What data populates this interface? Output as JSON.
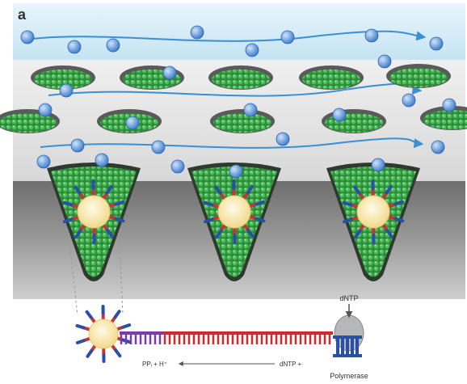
{
  "panel_label": "a",
  "labels": {
    "dntp_top": "dNTP",
    "ppi_h": "PPᵢ + H⁺",
    "dntp_plus": "dNTP +",
    "polymerase": "Polymerase"
  },
  "colors": {
    "bead": "#3aa64a",
    "sky": "#cfe9f7",
    "chip_gray": "#8a8a8a",
    "reagent": "#3a79c9",
    "strand_red": "#d8262b",
    "strand_purple": "#7b3ab0",
    "spike_red": "#c23636",
    "spike_blue": "#2a4fa8",
    "core": "#f9e7a8"
  }
}
